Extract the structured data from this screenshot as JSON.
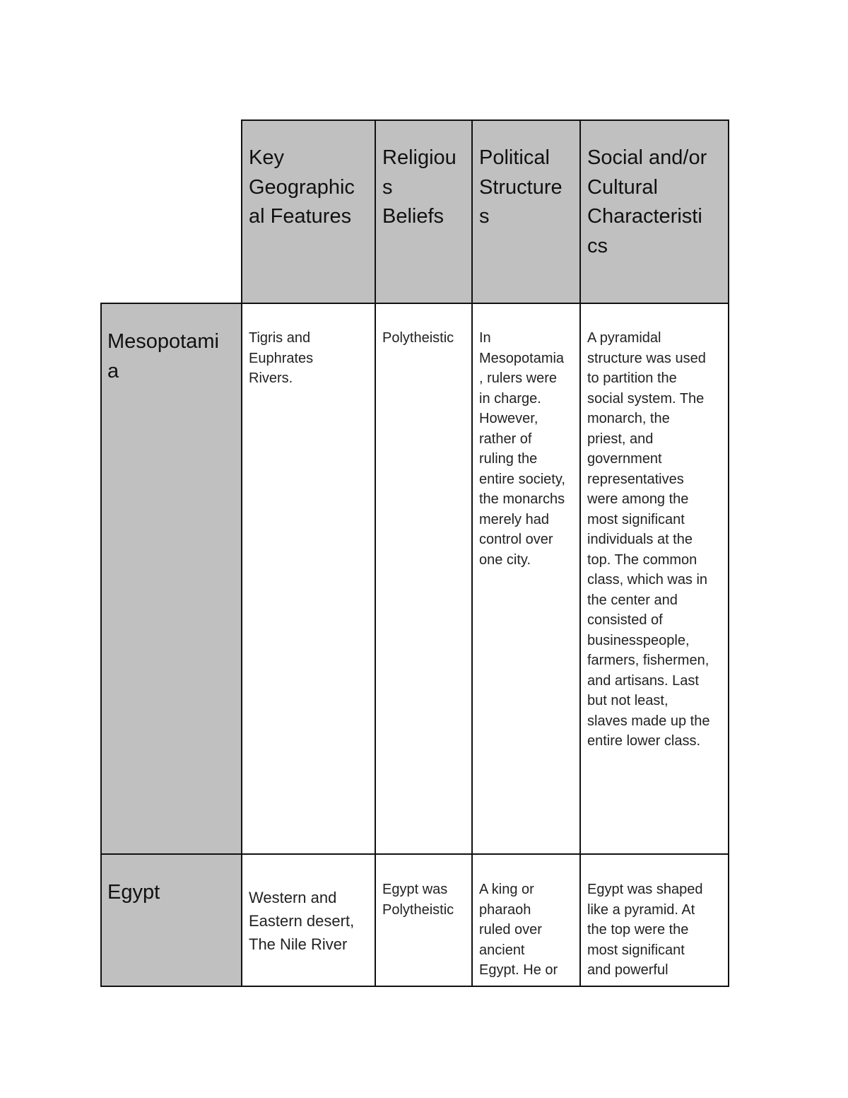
{
  "table": {
    "headers": [
      "Key\nGeographic\nal Features",
      "Religiou\ns\nBeliefs",
      "Political\nStructure\ns",
      "Social and/or\nCultural\nCharacteristi\ncs"
    ],
    "rows": [
      {
        "label": "Mesopotami\na",
        "cells": [
          "Tigris and\nEuphrates\nRivers.",
          "Polytheistic",
          "In\nMesopotamia\n, rulers were\nin charge.\nHowever,\nrather of\nruling the\nentire society,\nthe monarchs\nmerely had\ncontrol over\none city.",
          "A pyramidal\nstructure was used\nto partition the\nsocial system.  The\nmonarch, the\npriest, and\ngovernment\nrepresentatives\nwere among the\nmost significant\nindividuals at the\ntop. The common\nclass, which was in\nthe center and\nconsisted of\nbusinesspeople,\nfarmers, fishermen,\nand artisans. Last\nbut not least,\nslaves made up the\nentire lower class."
        ]
      },
      {
        "label": "Egypt",
        "cells": [
          " Western and\nEastern desert,\nThe Nile River",
          "Egypt was\nPolytheistic",
          " A king or\npharaoh\nruled over\nancient\nEgypt.  He or",
          "Egypt was shaped\nlike a pyramid.  At\nthe top were the\nmost significant\nand powerful"
        ]
      }
    ],
    "colors": {
      "header_fill": "#c0c0c0",
      "border": "#111111"
    }
  }
}
